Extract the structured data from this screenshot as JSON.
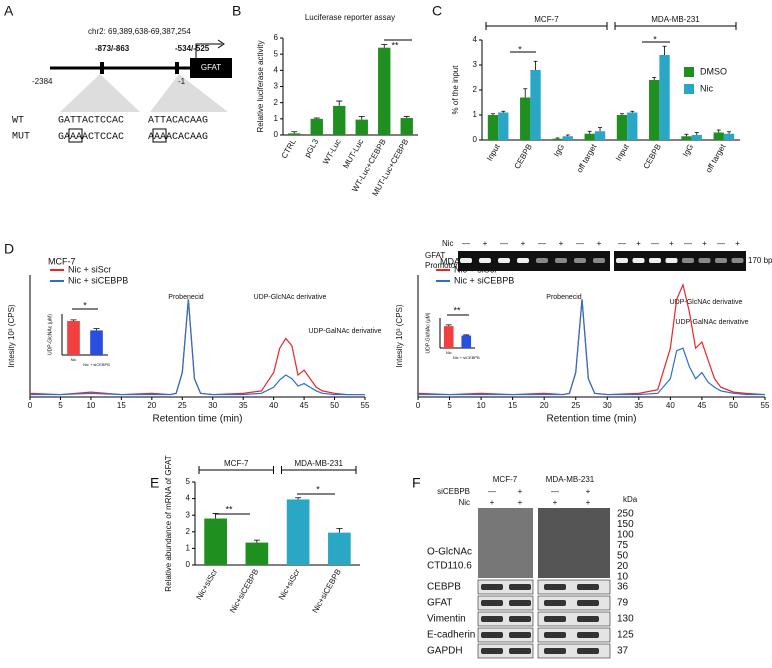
{
  "panel_labels": [
    "A",
    "B",
    "C",
    "D",
    "E",
    "F"
  ],
  "panel_a": {
    "locus": "chr2: 69,389,638-69,387,254",
    "site1": "-873/-863",
    "site2": "-534/-525",
    "start": "-2384",
    "end": "-1",
    "gene": "GFAT",
    "wt": "WT",
    "mut": "MUT",
    "wt_seq": [
      "GATTACTCCAC",
      "ATTACACAAG"
    ],
    "mut_seq1": [
      "GA",
      "AA",
      "ACTCCAC"
    ],
    "mut_seq2": [
      "A",
      "AA",
      "ACACAAG"
    ]
  },
  "chart_data": [
    {
      "type": "bar",
      "title": "Luciferase reporter assay",
      "y_label": "Relative luciferase activity",
      "categories": [
        "CTRL",
        "pGL3",
        "WT-Luc",
        "MUT-Luc",
        "WT-Luc+CEBPB",
        "MUT-Luc+CEBPB"
      ],
      "values": [
        0.1,
        1.0,
        1.8,
        0.95,
        5.4,
        1.05
      ],
      "errors": [
        0.1,
        0.05,
        0.3,
        0.2,
        0.2,
        0.1
      ],
      "color": "#1f8f1f",
      "ylim": [
        0,
        6
      ],
      "yticks": [
        0,
        1,
        2,
        3,
        4,
        5,
        6
      ],
      "annotations": [
        "**"
      ]
    },
    {
      "type": "bar",
      "y_label": "% of the input",
      "groups": [
        "MCF-7",
        "MDA-MB-231"
      ],
      "categories": [
        "Input",
        "CEBPB",
        "IgG",
        "off target",
        "Input",
        "CEBPB",
        "IgG",
        "off target"
      ],
      "series": [
        {
          "name": "DMSO",
          "color": "#1f8f1f",
          "values": [
            1.0,
            1.7,
            0.05,
            0.25,
            1.0,
            2.4,
            0.15,
            0.3
          ],
          "errors": [
            0.05,
            0.35,
            0.03,
            0.1,
            0.05,
            0.1,
            0.08,
            0.1
          ]
        },
        {
          "name": "Nic",
          "color": "#2aa7c4",
          "values": [
            1.1,
            2.8,
            0.15,
            0.35,
            1.1,
            3.4,
            0.2,
            0.25
          ],
          "errors": [
            0.05,
            0.35,
            0.05,
            0.15,
            0.05,
            0.35,
            0.1,
            0.08
          ]
        }
      ],
      "ylim": [
        0,
        4
      ],
      "yticks": [
        0,
        1,
        2,
        3,
        4
      ],
      "annotations": [
        "*",
        "*"
      ]
    },
    {
      "type": "line",
      "title": "MCF-7",
      "y_label": "Intesity 10³ (CPS)",
      "x_label": "Retention time (min)",
      "x": [
        0,
        5,
        10,
        15,
        20,
        23,
        24,
        25,
        26,
        27,
        28,
        30,
        35,
        38,
        40,
        41,
        42,
        43,
        44,
        45,
        46,
        47,
        48,
        50,
        52,
        55
      ],
      "series": [
        {
          "name": "Nic + siScr",
          "color": "#e8262a",
          "values": [
            3,
            2,
            4,
            2,
            3,
            2,
            3,
            20,
            80,
            15,
            3,
            2,
            3,
            5,
            20,
            40,
            48,
            42,
            18,
            22,
            15,
            8,
            5,
            3,
            2,
            2
          ]
        },
        {
          "name": "Nic + siCEBPB",
          "color": "#2a6fd0",
          "values": [
            2,
            2,
            3,
            2,
            2,
            2,
            3,
            20,
            80,
            15,
            3,
            2,
            2,
            3,
            8,
            14,
            18,
            15,
            9,
            11,
            8,
            5,
            3,
            2,
            2,
            2
          ]
        }
      ],
      "xlim": [
        0,
        55
      ],
      "xticks": [
        0,
        5,
        10,
        15,
        20,
        25,
        30,
        35,
        40,
        45,
        50,
        55
      ],
      "ylim": [
        0,
        100
      ],
      "annotations": [
        "Probenecid",
        "UDP-GlcNAc derivative",
        "UDP-GalNAc derivative"
      ]
    },
    {
      "type": "bar",
      "y_label": "UDP-GlcNAc (μM)",
      "categories": [
        "Nic",
        "Nic + siCEBPB"
      ],
      "values": [
        5.8,
        4.2
      ],
      "errors": [
        0.2,
        0.3
      ],
      "colors": [
        "#f04040",
        "#2a4fe0"
      ],
      "ylim": [
        0,
        7
      ],
      "annotations": [
        "*"
      ]
    },
    {
      "type": "line",
      "title": "MDA-MB-231",
      "y_label": "Intesity 10³ (CPS)",
      "x_label": "Retention time (min)",
      "x": [
        0,
        5,
        10,
        15,
        20,
        23,
        24,
        25,
        26,
        27,
        28,
        30,
        35,
        38,
        40,
        41,
        42,
        43,
        44,
        45,
        46,
        47,
        48,
        50,
        52,
        55
      ],
      "series": [
        {
          "name": "Nic + siScr",
          "color": "#e8262a",
          "values": [
            3,
            2,
            3,
            2,
            3,
            2,
            3,
            20,
            80,
            15,
            3,
            2,
            3,
            6,
            40,
            80,
            92,
            70,
            40,
            45,
            30,
            15,
            8,
            4,
            3,
            2
          ]
        },
        {
          "name": "Nic + siCEBPB",
          "color": "#2a6fd0",
          "values": [
            2,
            2,
            2,
            2,
            2,
            2,
            3,
            20,
            80,
            15,
            3,
            2,
            2,
            3,
            15,
            38,
            40,
            25,
            15,
            20,
            12,
            8,
            5,
            3,
            2,
            2
          ]
        }
      ],
      "xlim": [
        0,
        55
      ],
      "xticks": [
        0,
        5,
        10,
        15,
        20,
        25,
        30,
        35,
        40,
        45,
        50,
        55
      ],
      "ylim": [
        0,
        100
      ],
      "annotations": [
        "Probenecid",
        "UDP-GlcNAc derivative",
        "UDP-GalNAc derivative"
      ]
    },
    {
      "type": "bar",
      "y_label": "UDP-GlcNAc (μM)",
      "categories": [
        "Nic",
        "Nic + siCEBPB"
      ],
      "values": [
        5.1,
        2.9
      ],
      "errors": [
        0.3,
        0.15
      ],
      "colors": [
        "#f04040",
        "#2a4fe0"
      ],
      "ylim": [
        0,
        7
      ],
      "annotations": [
        "**"
      ]
    },
    {
      "type": "bar",
      "y_label": "Relative abundance of mRNA of GFAT",
      "groups": [
        "MCF-7",
        "MDA-MB-231"
      ],
      "categories": [
        "Nic+siScr",
        "Nic+siCEBPB",
        "Nic+siScr",
        "Nic+siCEBPB"
      ],
      "values": [
        2.8,
        1.35,
        3.95,
        1.95
      ],
      "errors": [
        0.3,
        0.15,
        0.1,
        0.25
      ],
      "colors": [
        "#1f8f1f",
        "#1f8f1f",
        "#2aa7c4",
        "#2aa7c4"
      ],
      "ylim": [
        0,
        5
      ],
      "yticks": [
        0,
        1,
        2,
        3,
        4,
        5
      ],
      "annotations": [
        "**",
        "*"
      ]
    }
  ],
  "gel": {
    "treatment": "Nic",
    "signs": [
      "—",
      "+",
      "—",
      "+",
      "—",
      "+",
      "—",
      "+",
      "—",
      "+",
      "—",
      "+",
      "—",
      "+",
      "—",
      "+"
    ],
    "label": [
      "GFAT",
      "Promotor"
    ],
    "size": "170 bp"
  },
  "panel_f": {
    "lines": [
      "MCF-7",
      "MDA-MB-231"
    ],
    "sirna": "siCEBPB",
    "treatment": "Nic",
    "si_signs": [
      "—",
      "+",
      "—",
      "+"
    ],
    "nic_signs": [
      "+",
      "+",
      "+",
      "+"
    ],
    "unit": "kDa",
    "glcnac": [
      "O-GlcNAc",
      "CTD110.6"
    ],
    "ladder": [
      "250",
      "150",
      "100",
      "75",
      "50",
      "20",
      "10"
    ],
    "blots": [
      {
        "label": "CEBPB",
        "kda": "36"
      },
      {
        "label": "GFAT",
        "kda": "79"
      },
      {
        "label": "Vimentin",
        "kda": "130"
      },
      {
        "label": "E-cadherin",
        "kda": "125"
      },
      {
        "label": "GAPDH",
        "kda": "37"
      }
    ]
  }
}
